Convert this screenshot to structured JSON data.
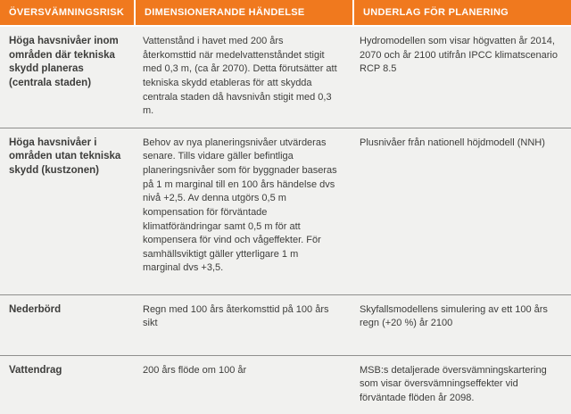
{
  "colors": {
    "header_bg": "#F0791E",
    "header_text": "#FFFFFF",
    "row_bg": "#F1F1EF",
    "divider": "#8F8F8D",
    "body_text": "#3D3D3B"
  },
  "table": {
    "headers": [
      "ÖVERSVÄMNINGSRISK",
      "DIMENSIONERANDE HÄNDELSE",
      "UNDERLAG FÖR PLANERING"
    ],
    "rows": [
      {
        "risk": "Höga havsnivåer inom områden där tekniska skydd planeras (centrala staden)",
        "event": "Vattenstånd i havet med 200 års återkomsttid när medelvattenståndet stigit med 0,3 m, (ca år 2070). Detta förutsätter att tekniska skydd etableras för att skydda centrala staden då havsnivån stigit med 0,3 m.",
        "basis": "Hydromodellen som visar högvatten år 2014, 2070 och år 2100 utifrån IPCC klimatscenario RCP 8.5"
      },
      {
        "risk": "Höga havsnivåer i områden utan tekniska skydd (kustzonen)",
        "event": "Behov av nya planeringsnivåer utvärderas senare. Tills vidare gäller befintliga planeringsnivåer som för byggnader baseras på 1 m marginal till en 100 års händelse dvs nivå +2,5. Av denna utgörs 0,5 m kompensation för förväntade klimatförändringar samt 0,5 m för att kompensera för vind och vågeffekter. För samhällsviktigt gäller ytterligare 1 m marginal dvs +3,5.",
        "basis": "Plusnivåer från nationell höjdmodell (NNH)"
      },
      {
        "risk": "Nederbörd",
        "event": "Regn med 100 års återkomsttid på 100 års sikt",
        "basis": "Skyfallsmodellens simulering av ett 100 års regn (+20 %) år 2100"
      },
      {
        "risk": "Vattendrag",
        "event": "200 års flöde om 100 år",
        "basis": "MSB:s detaljerade översvämningskartering som visar översvämningseffekter vid förväntade flöden år 2098."
      }
    ]
  }
}
